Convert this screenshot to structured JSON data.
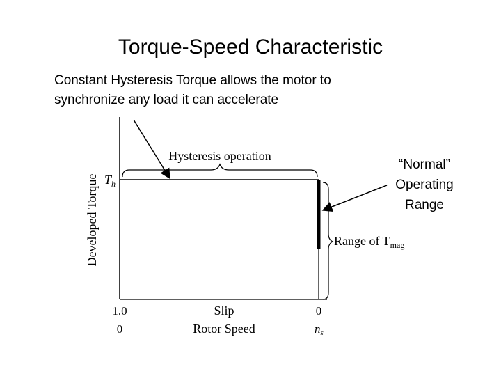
{
  "slide": {
    "title": "Torque-Speed Characteristic",
    "subtitle": "Constant Hysteresis Torque allows the motor to synchronize any load it can accelerate",
    "callout": "“Normal” Operating Range"
  },
  "diagram": {
    "y_axis_label": "Developed Torque",
    "torque_marker": "T",
    "torque_marker_sub": "h",
    "hysteresis_label": "Hysteresis operation",
    "range_label": "Range of T",
    "range_label_sub": "mag",
    "slip_label": "Slip",
    "speed_label": "Rotor Speed",
    "slip_start": "1.0",
    "slip_end": "0",
    "speed_start": "0",
    "speed_end": "n",
    "speed_end_sub": "s"
  }
}
